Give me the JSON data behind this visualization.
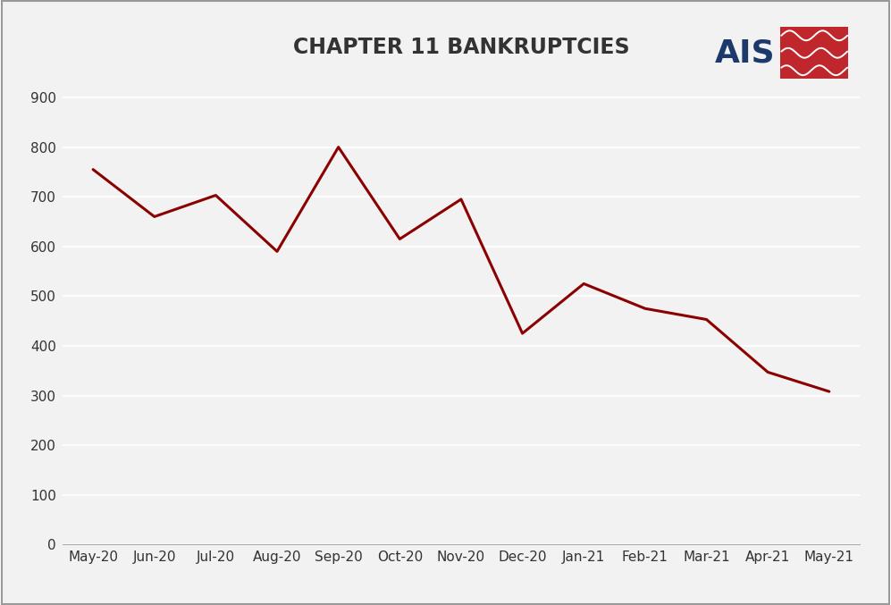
{
  "title": "CHAPTER 11 BANKRUPTCIES",
  "categories": [
    "May-20",
    "Jun-20",
    "Jul-20",
    "Aug-20",
    "Sep-20",
    "Oct-20",
    "Nov-20",
    "Dec-20",
    "Jan-21",
    "Feb-21",
    "Mar-21",
    "Apr-21",
    "May-21"
  ],
  "values": [
    755,
    660,
    703,
    590,
    800,
    615,
    695,
    425,
    525,
    475,
    453,
    347,
    308
  ],
  "line_color": "#8B0000",
  "line_width": 2.2,
  "background_color": "#F2F2F2",
  "plot_bg_color": "#F2F2F2",
  "ylim": [
    0,
    950
  ],
  "yticks": [
    0,
    100,
    200,
    300,
    400,
    500,
    600,
    700,
    800,
    900
  ],
  "title_fontsize": 17,
  "tick_fontsize": 11,
  "grid_color": "#FFFFFF",
  "border_color": "#AAAAAA",
  "ais_text_color": "#1B3A6B",
  "ais_red": "#C0272D"
}
